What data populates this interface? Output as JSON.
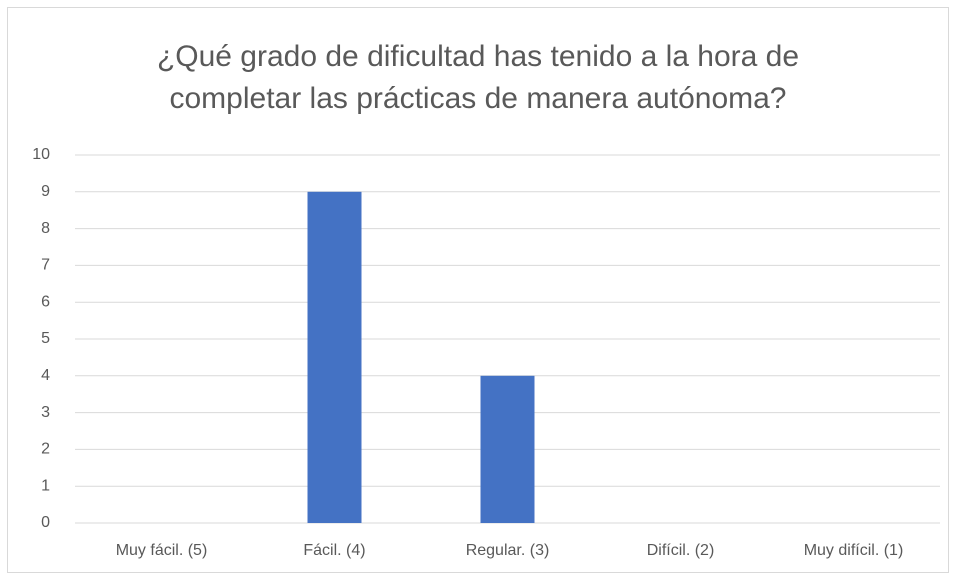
{
  "chart_data": {
    "type": "bar",
    "title": "¿Qué grado de dificultad has tenido a la hora de completar las prácticas de manera autónoma?",
    "categories": [
      "Muy fácil. (5)",
      "Fácil. (4)",
      "Regular. (3)",
      "Difícil. (2)",
      "Muy difícil. (1)"
    ],
    "values": [
      0,
      9,
      4,
      0,
      0
    ],
    "color": "#4472c4",
    "ylim": [
      0,
      10
    ],
    "yticks": [
      0,
      1,
      2,
      3,
      4,
      5,
      6,
      7,
      8,
      9,
      10
    ],
    "grid": true
  }
}
